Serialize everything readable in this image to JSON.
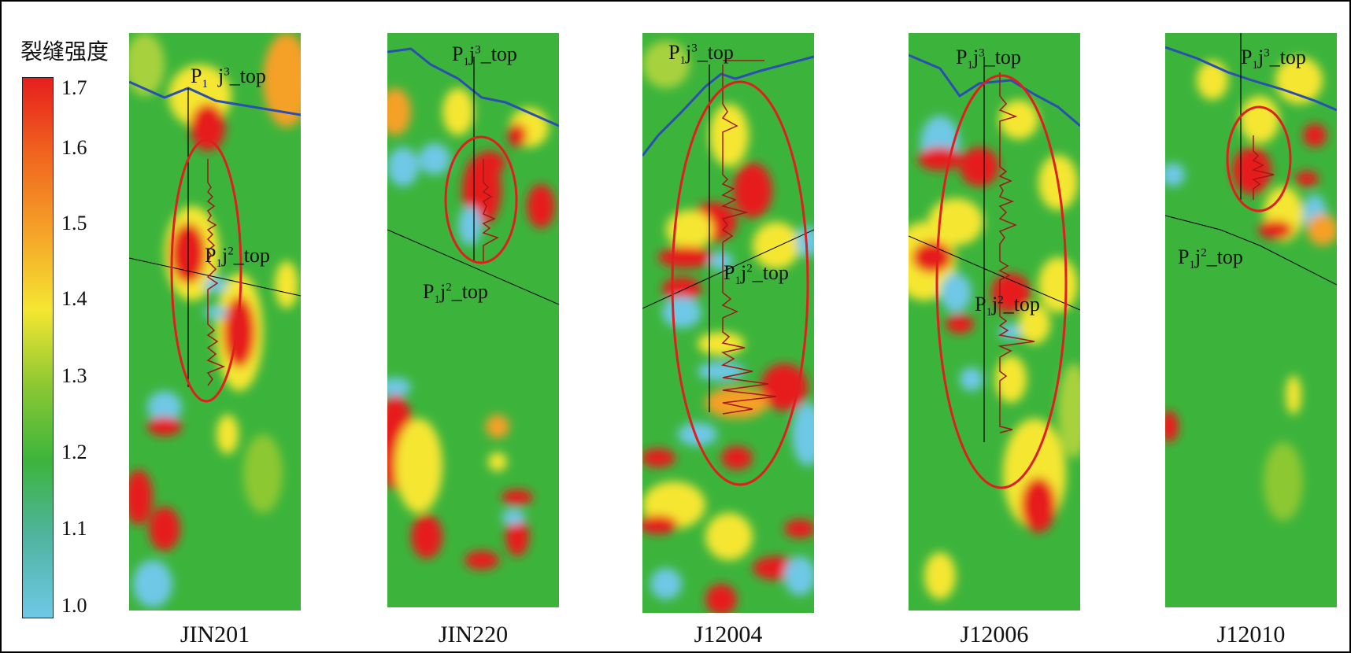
{
  "legend": {
    "title": "裂缝强度",
    "ticks": [
      "1.7",
      "1.6",
      "1.5",
      "1.4",
      "1.3",
      "1.2",
      "1.1",
      "1.0"
    ],
    "colors": {
      "high": "#e61e1e",
      "mid": "#f5e632",
      "background": "#3cb43c",
      "low": "#6ec8e6"
    }
  },
  "horizons": {
    "j3": {
      "prefix": "P",
      "sub": "1",
      "mid": "j",
      "sup": "3",
      "suffix": "_top"
    },
    "j2": {
      "prefix": "P",
      "sub": "1",
      "mid": "j",
      "sup": "2",
      "suffix": "_top"
    }
  },
  "wells": [
    "JIN201",
    "JIN220",
    "J12004",
    "J12006",
    "J12010"
  ]
}
